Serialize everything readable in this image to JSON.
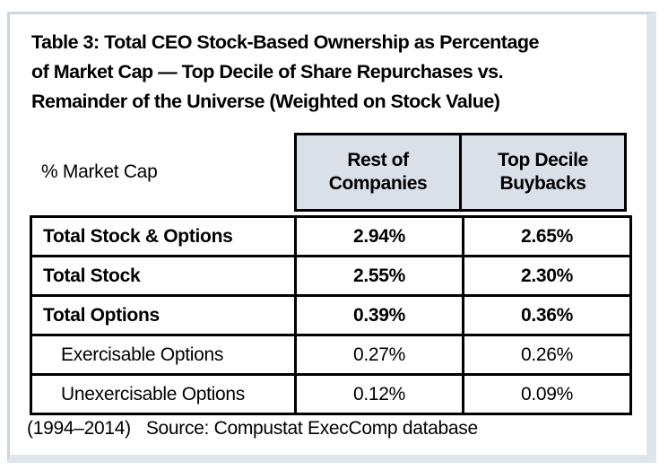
{
  "card": {
    "title_lines": [
      "Table 3: Total CEO Stock-Based Ownership as Percentage",
      "of Market Cap — Top Decile of Share Repurchases vs.",
      "Remainder of the Universe (Weighted on Stock Value)"
    ],
    "footnote": {
      "period": "(1994–2014)",
      "source": "Source: Compustat ExecComp database"
    }
  },
  "table": {
    "corner_label": "% Market Cap",
    "columns": [
      {
        "line1": "Rest of",
        "line2": "Companies"
      },
      {
        "line1": "Top Decile",
        "line2": "Buybacks"
      }
    ],
    "rows": [
      {
        "label": "Total Stock & Options",
        "rest_of_companies": "2.94%",
        "top_decile_buybacks": "2.65%",
        "emphasis": true,
        "indent": false
      },
      {
        "label": "Total Stock",
        "rest_of_companies": "2.55%",
        "top_decile_buybacks": "2.30%",
        "emphasis": true,
        "indent": false
      },
      {
        "label": "Total Options",
        "rest_of_companies": "0.39%",
        "top_decile_buybacks": "0.36%",
        "emphasis": true,
        "indent": false
      },
      {
        "label": "Exercisable Options",
        "rest_of_companies": "0.27%",
        "top_decile_buybacks": "0.26%",
        "emphasis": false,
        "indent": true
      },
      {
        "label": "Unexercisable Options",
        "rest_of_companies": "0.12%",
        "top_decile_buybacks": "0.09%",
        "emphasis": false,
        "indent": true
      }
    ]
  },
  "colors": {
    "header_fill": "#d9e0e7",
    "frame_line": "#cbd6de",
    "frame_shadow": "#dfe6eb",
    "table_border": "#000000",
    "text": "#000000",
    "background": "#ffffff"
  }
}
